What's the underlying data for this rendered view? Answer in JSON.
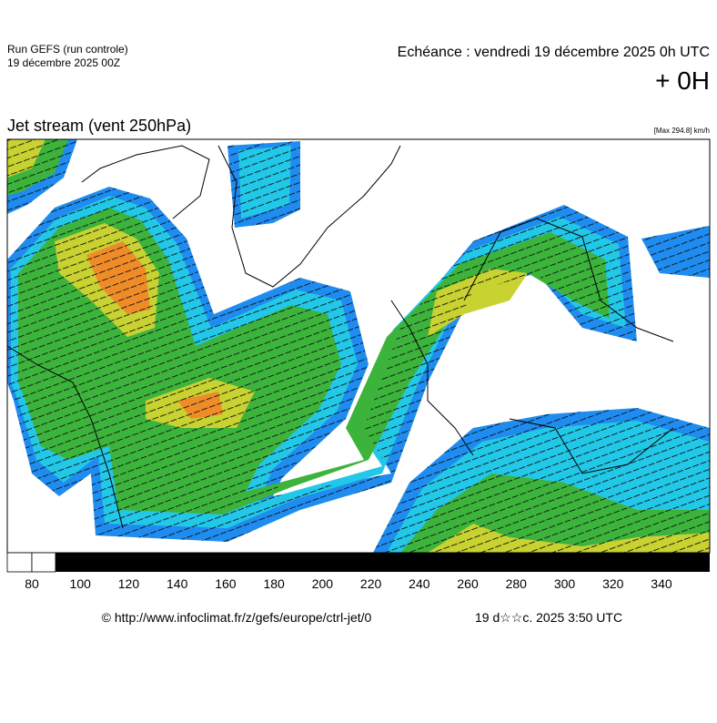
{
  "header": {
    "run": "Run GEFS (run controle)",
    "run_date": "19 décembre 2025 00Z",
    "forecast": "Echéance : vendredi 19 décembre 2025 0h UTC",
    "lead": "+ 0H",
    "title": "Jet stream (vent 250hPa)",
    "max": "[Max 294.8] km/h"
  },
  "colorbar": {
    "ticks": [
      80,
      100,
      120,
      140,
      160,
      180,
      200,
      220,
      240,
      260,
      280,
      300,
      320,
      340
    ]
  },
  "footer": {
    "url": "© http://www.infoclimat.fr/z/gefs/europe/ctrl-jet/0",
    "stamp": "19 d☆☆c. 2025  3:50 UTC"
  }
}
